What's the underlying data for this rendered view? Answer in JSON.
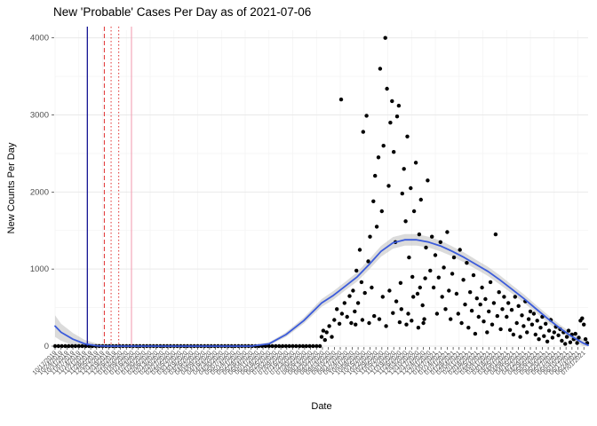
{
  "chart_data": {
    "type": "scatter",
    "title": "New 'Probable' Cases Per Day as of 2021-07-06",
    "xlabel": "Date",
    "ylabel": "New Counts Per Day",
    "x_domain": [
      "2019-10-17",
      "2021-07-06"
    ],
    "ylim": [
      0,
      4100
    ],
    "grid": true,
    "legend": "none",
    "point_color": "#000000",
    "ribbon_color": "#b0b0b0",
    "y_ticks": [
      0,
      1000,
      2000,
      3000,
      4000
    ],
    "y_tick_labels": [
      "0",
      "1000",
      "2000",
      "3000",
      "4000"
    ],
    "x_tick_labels": [
      "10/17/2019",
      "10/24/2019",
      "10/31/2019",
      "11/07/2019",
      "11/14/2019",
      "11/21/2019",
      "11/28/2019",
      "12/05/2019",
      "12/12/2019",
      "12/19/2019",
      "12/26/2019",
      "01/02/2020",
      "01/09/2020",
      "01/16/2020",
      "01/23/2020",
      "01/30/2020",
      "02/06/2020",
      "02/13/2020",
      "02/20/2020",
      "02/27/2020",
      "03/05/2020",
      "03/12/2020",
      "03/19/2020",
      "03/26/2020",
      "04/02/2020",
      "04/09/2020",
      "04/16/2020",
      "04/23/2020",
      "04/30/2020",
      "05/07/2020",
      "05/14/2020",
      "05/21/2020",
      "05/28/2020",
      "06/04/2020",
      "06/11/2020",
      "06/18/2020",
      "06/25/2020",
      "07/02/2020",
      "07/09/2020",
      "07/16/2020",
      "07/23/2020",
      "07/30/2020",
      "08/06/2020",
      "08/13/2020",
      "08/20/2020",
      "08/27/2020",
      "09/03/2020",
      "09/10/2020",
      "09/17/2020",
      "09/24/2020",
      "10/01/2020",
      "10/08/2020",
      "10/15/2020",
      "10/22/2020",
      "10/29/2020",
      "11/05/2020",
      "11/12/2020",
      "11/19/2020",
      "11/26/2020",
      "12/03/2020",
      "12/10/2020",
      "12/17/2020",
      "12/24/2020",
      "12/31/2020",
      "01/07/2021",
      "01/14/2021",
      "01/21/2021",
      "01/28/2021",
      "02/04/2021",
      "02/11/2021",
      "02/18/2021",
      "02/25/2021",
      "03/04/2021",
      "03/11/2021",
      "03/18/2021",
      "03/25/2021",
      "04/01/2021",
      "04/08/2021",
      "04/15/2021",
      "04/22/2021",
      "04/29/2021",
      "05/06/2021",
      "05/13/2021",
      "05/20/2021",
      "05/27/2021",
      "06/03/2021",
      "06/10/2021",
      "06/17/2021",
      "06/24/2021",
      "07/01/2021"
    ],
    "vlines": [
      {
        "date": "2019-11-24",
        "color": "#00008b",
        "style": "solid",
        "width": 1.2
      },
      {
        "date": "2019-12-14",
        "color": "#e03131",
        "style": "dashed",
        "width": 1
      },
      {
        "date": "2019-12-22",
        "color": "#e03131",
        "style": "dotted",
        "width": 1
      },
      {
        "date": "2019-12-31",
        "color": "#e03131",
        "style": "dotted",
        "width": 1
      },
      {
        "date": "2020-01-15",
        "color": "#f4a7b9",
        "style": "solid",
        "width": 1.2
      }
    ],
    "smooth_line": {
      "color": "#3b5bdb",
      "x": [
        "2019-10-17",
        "2019-10-24",
        "2019-11-07",
        "2019-11-21",
        "2019-12-05",
        "2019-12-19",
        "2020-01-16",
        "2020-02-13",
        "2020-03-12",
        "2020-04-09",
        "2020-05-07",
        "2020-06-04",
        "2020-06-25",
        "2020-07-15",
        "2020-08-05",
        "2020-08-26",
        "2020-09-09",
        "2020-09-23",
        "2020-10-07",
        "2020-10-21",
        "2020-11-04",
        "2020-11-18",
        "2020-12-02",
        "2020-12-16",
        "2020-12-30",
        "2021-01-13",
        "2021-01-27",
        "2021-02-10",
        "2021-02-24",
        "2021-03-10",
        "2021-03-24",
        "2021-04-07",
        "2021-04-21",
        "2021-05-05",
        "2021-05-19",
        "2021-06-02",
        "2021-06-16",
        "2021-06-30",
        "2021-07-06"
      ],
      "y": [
        260,
        180,
        90,
        30,
        5,
        0,
        0,
        0,
        0,
        0,
        0,
        0,
        30,
        150,
        330,
        560,
        660,
        780,
        900,
        1060,
        1230,
        1340,
        1380,
        1380,
        1350,
        1300,
        1230,
        1150,
        1060,
        970,
        860,
        740,
        620,
        490,
        360,
        240,
        130,
        40,
        10
      ],
      "band": [
        140,
        110,
        80,
        50,
        30,
        18,
        12,
        10,
        10,
        10,
        10,
        12,
        18,
        30,
        40,
        50,
        55,
        55,
        60,
        65,
        70,
        75,
        75,
        75,
        70,
        70,
        65,
        65,
        60,
        60,
        60,
        55,
        55,
        50,
        50,
        45,
        45,
        50,
        55
      ]
    },
    "points": [
      [
        "2019-10-17",
        0
      ],
      [
        "2019-10-21",
        0
      ],
      [
        "2019-10-25",
        0
      ],
      [
        "2019-10-29",
        0
      ],
      [
        "2019-11-02",
        0
      ],
      [
        "2019-11-06",
        0
      ],
      [
        "2019-11-10",
        0
      ],
      [
        "2019-11-14",
        0
      ],
      [
        "2019-11-18",
        0
      ],
      [
        "2019-11-22",
        0
      ],
      [
        "2019-11-26",
        0
      ],
      [
        "2019-11-30",
        0
      ],
      [
        "2019-12-04",
        0
      ],
      [
        "2019-12-08",
        0
      ],
      [
        "2019-12-12",
        0
      ],
      [
        "2019-12-16",
        0
      ],
      [
        "2019-12-20",
        0
      ],
      [
        "2019-12-24",
        0
      ],
      [
        "2019-12-28",
        0
      ],
      [
        "2020-01-01",
        0
      ],
      [
        "2020-01-05",
        0
      ],
      [
        "2020-01-09",
        0
      ],
      [
        "2020-01-13",
        0
      ],
      [
        "2020-01-17",
        0
      ],
      [
        "2020-01-21",
        0
      ],
      [
        "2020-01-25",
        0
      ],
      [
        "2020-01-29",
        0
      ],
      [
        "2020-02-02",
        0
      ],
      [
        "2020-02-06",
        0
      ],
      [
        "2020-02-10",
        0
      ],
      [
        "2020-02-14",
        0
      ],
      [
        "2020-02-18",
        0
      ],
      [
        "2020-02-22",
        0
      ],
      [
        "2020-02-26",
        0
      ],
      [
        "2020-03-01",
        0
      ],
      [
        "2020-03-05",
        0
      ],
      [
        "2020-03-09",
        0
      ],
      [
        "2020-03-13",
        0
      ],
      [
        "2020-03-17",
        0
      ],
      [
        "2020-03-21",
        0
      ],
      [
        "2020-03-25",
        0
      ],
      [
        "2020-03-29",
        0
      ],
      [
        "2020-04-02",
        0
      ],
      [
        "2020-04-06",
        0
      ],
      [
        "2020-04-10",
        0
      ],
      [
        "2020-04-14",
        0
      ],
      [
        "2020-04-18",
        0
      ],
      [
        "2020-04-22",
        0
      ],
      [
        "2020-04-26",
        0
      ],
      [
        "2020-04-30",
        0
      ],
      [
        "2020-05-04",
        0
      ],
      [
        "2020-05-08",
        0
      ],
      [
        "2020-05-12",
        0
      ],
      [
        "2020-05-16",
        0
      ],
      [
        "2020-05-20",
        0
      ],
      [
        "2020-05-24",
        0
      ],
      [
        "2020-05-28",
        0
      ],
      [
        "2020-06-01",
        0
      ],
      [
        "2020-06-05",
        0
      ],
      [
        "2020-06-09",
        0
      ],
      [
        "2020-06-13",
        0
      ],
      [
        "2020-06-17",
        0
      ],
      [
        "2020-06-21",
        0
      ],
      [
        "2020-06-25",
        0
      ],
      [
        "2020-06-29",
        0
      ],
      [
        "2020-07-03",
        0
      ],
      [
        "2020-07-07",
        0
      ],
      [
        "2020-07-11",
        0
      ],
      [
        "2020-07-15",
        0
      ],
      [
        "2020-07-19",
        0
      ],
      [
        "2020-07-23",
        0
      ],
      [
        "2020-07-27",
        0
      ],
      [
        "2020-07-31",
        0
      ],
      [
        "2020-08-04",
        0
      ],
      [
        "2020-08-08",
        0
      ],
      [
        "2020-08-12",
        0
      ],
      [
        "2020-08-16",
        0
      ],
      [
        "2020-08-20",
        0
      ],
      [
        "2020-08-24",
        0
      ],
      [
        "2020-08-26",
        120
      ],
      [
        "2020-08-28",
        200
      ],
      [
        "2020-08-30",
        80
      ],
      [
        "2020-09-01",
        180
      ],
      [
        "2020-09-04",
        260
      ],
      [
        "2020-09-07",
        120
      ],
      [
        "2020-09-10",
        340
      ],
      [
        "2020-09-13",
        480
      ],
      [
        "2020-09-16",
        290
      ],
      [
        "2020-09-18",
        3200
      ],
      [
        "2020-09-19",
        420
      ],
      [
        "2020-09-22",
        560
      ],
      [
        "2020-09-25",
        380
      ],
      [
        "2020-09-28",
        650
      ],
      [
        "2020-09-30",
        300
      ],
      [
        "2020-10-02",
        720
      ],
      [
        "2020-10-04",
        450
      ],
      [
        "2020-10-05",
        280
      ],
      [
        "2020-10-06",
        980
      ],
      [
        "2020-10-08",
        560
      ],
      [
        "2020-10-10",
        1250
      ],
      [
        "2020-10-12",
        830
      ],
      [
        "2020-10-13",
        340
      ],
      [
        "2020-10-14",
        2780
      ],
      [
        "2020-10-16",
        690
      ],
      [
        "2020-10-18",
        2990
      ],
      [
        "2020-10-20",
        1100
      ],
      [
        "2020-10-21",
        300
      ],
      [
        "2020-10-22",
        1420
      ],
      [
        "2020-10-24",
        760
      ],
      [
        "2020-10-26",
        1880
      ],
      [
        "2020-10-27",
        390
      ],
      [
        "2020-10-28",
        2210
      ],
      [
        "2020-10-30",
        1550
      ],
      [
        "2020-11-01",
        2450
      ],
      [
        "2020-11-02",
        350
      ],
      [
        "2020-11-03",
        3600
      ],
      [
        "2020-11-05",
        1750
      ],
      [
        "2020-11-06",
        640
      ],
      [
        "2020-11-07",
        2600
      ],
      [
        "2020-11-09",
        4000
      ],
      [
        "2020-11-10",
        260
      ],
      [
        "2020-11-11",
        3340
      ],
      [
        "2020-11-13",
        2080
      ],
      [
        "2020-11-14",
        720
      ],
      [
        "2020-11-15",
        2900
      ],
      [
        "2020-11-17",
        3180
      ],
      [
        "2020-11-18",
        430
      ],
      [
        "2020-11-19",
        2520
      ],
      [
        "2020-11-21",
        1350
      ],
      [
        "2020-11-22",
        580
      ],
      [
        "2020-11-23",
        2980
      ],
      [
        "2020-11-25",
        3120
      ],
      [
        "2020-11-26",
        310
      ],
      [
        "2020-11-27",
        820
      ],
      [
        "2020-11-28",
        480
      ],
      [
        "2020-11-29",
        1980
      ],
      [
        "2020-12-01",
        2300
      ],
      [
        "2020-12-03",
        1620
      ],
      [
        "2020-12-04",
        280
      ],
      [
        "2020-12-05",
        2720
      ],
      [
        "2020-12-06",
        420
      ],
      [
        "2020-12-07",
        1150
      ],
      [
        "2020-12-09",
        2050
      ],
      [
        "2020-12-10",
        330
      ],
      [
        "2020-12-11",
        900
      ],
      [
        "2020-12-12",
        640
      ],
      [
        "2020-12-13",
        1750
      ],
      [
        "2020-12-15",
        2380
      ],
      [
        "2020-12-17",
        680
      ],
      [
        "2020-12-18",
        240
      ],
      [
        "2020-12-19",
        1450
      ],
      [
        "2020-12-20",
        760
      ],
      [
        "2020-12-21",
        1900
      ],
      [
        "2020-12-23",
        530
      ],
      [
        "2020-12-24",
        300
      ],
      [
        "2020-12-25",
        350
      ],
      [
        "2020-12-26",
        880
      ],
      [
        "2020-12-27",
        1280
      ],
      [
        "2020-12-29",
        2150
      ],
      [
        "2021-01-01",
        980
      ],
      [
        "2021-01-03",
        1420
      ],
      [
        "2021-01-05",
        760
      ],
      [
        "2021-01-07",
        1180
      ],
      [
        "2021-01-09",
        420
      ],
      [
        "2021-01-11",
        890
      ],
      [
        "2021-01-13",
        1350
      ],
      [
        "2021-01-15",
        640
      ],
      [
        "2021-01-17",
        1020
      ],
      [
        "2021-01-19",
        480
      ],
      [
        "2021-01-21",
        1480
      ],
      [
        "2021-01-23",
        720
      ],
      [
        "2021-01-25",
        350
      ],
      [
        "2021-01-27",
        940
      ],
      [
        "2021-01-29",
        1150
      ],
      [
        "2021-02-01",
        680
      ],
      [
        "2021-02-03",
        420
      ],
      [
        "2021-02-05",
        1250
      ],
      [
        "2021-02-07",
        300
      ],
      [
        "2021-02-09",
        860
      ],
      [
        "2021-02-11",
        540
      ],
      [
        "2021-02-13",
        1080
      ],
      [
        "2021-02-15",
        240
      ],
      [
        "2021-02-17",
        700
      ],
      [
        "2021-02-19",
        460
      ],
      [
        "2021-02-21",
        920
      ],
      [
        "2021-02-23",
        160
      ],
      [
        "2021-02-25",
        620
      ],
      [
        "2021-02-27",
        380
      ],
      [
        "2021-03-01",
        540
      ],
      [
        "2021-03-03",
        760
      ],
      [
        "2021-03-05",
        320
      ],
      [
        "2021-03-07",
        610
      ],
      [
        "2021-03-09",
        180
      ],
      [
        "2021-03-11",
        450
      ],
      [
        "2021-03-13",
        830
      ],
      [
        "2021-03-15",
        280
      ],
      [
        "2021-03-17",
        560
      ],
      [
        "2021-03-19",
        1450
      ],
      [
        "2021-03-21",
        390
      ],
      [
        "2021-03-23",
        700
      ],
      [
        "2021-03-25",
        220
      ],
      [
        "2021-03-27",
        480
      ],
      [
        "2021-03-29",
        640
      ],
      [
        "2021-04-01",
        380
      ],
      [
        "2021-04-03",
        560
      ],
      [
        "2021-04-05",
        210
      ],
      [
        "2021-04-07",
        470
      ],
      [
        "2021-04-09",
        150
      ],
      [
        "2021-04-11",
        640
      ],
      [
        "2021-04-13",
        300
      ],
      [
        "2021-04-15",
        520
      ],
      [
        "2021-04-17",
        120
      ],
      [
        "2021-04-19",
        400
      ],
      [
        "2021-04-21",
        260
      ],
      [
        "2021-04-23",
        580
      ],
      [
        "2021-04-25",
        180
      ],
      [
        "2021-04-27",
        350
      ],
      [
        "2021-04-29",
        450
      ],
      [
        "2021-05-01",
        280
      ],
      [
        "2021-05-03",
        420
      ],
      [
        "2021-05-05",
        150
      ],
      [
        "2021-05-07",
        330
      ],
      [
        "2021-05-09",
        90
      ],
      [
        "2021-05-11",
        240
      ],
      [
        "2021-05-13",
        380
      ],
      [
        "2021-05-15",
        130
      ],
      [
        "2021-05-17",
        290
      ],
      [
        "2021-05-19",
        60
      ],
      [
        "2021-05-21",
        200
      ],
      [
        "2021-05-23",
        340
      ],
      [
        "2021-05-25",
        110
      ],
      [
        "2021-05-27",
        180
      ],
      [
        "2021-05-29",
        250
      ],
      [
        "2021-06-01",
        140
      ],
      [
        "2021-06-03",
        220
      ],
      [
        "2021-06-05",
        70
      ],
      [
        "2021-06-07",
        180
      ],
      [
        "2021-06-09",
        30
      ],
      [
        "2021-06-11",
        120
      ],
      [
        "2021-06-13",
        200
      ],
      [
        "2021-06-15",
        50
      ],
      [
        "2021-06-17",
        150
      ],
      [
        "2021-06-19",
        90
      ],
      [
        "2021-06-21",
        160
      ],
      [
        "2021-06-23",
        40
      ],
      [
        "2021-06-25",
        110
      ],
      [
        "2021-06-27",
        330
      ],
      [
        "2021-06-29",
        360
      ],
      [
        "2021-07-01",
        280
      ],
      [
        "2021-07-03",
        90
      ],
      [
        "2021-07-05",
        40
      ]
    ]
  }
}
